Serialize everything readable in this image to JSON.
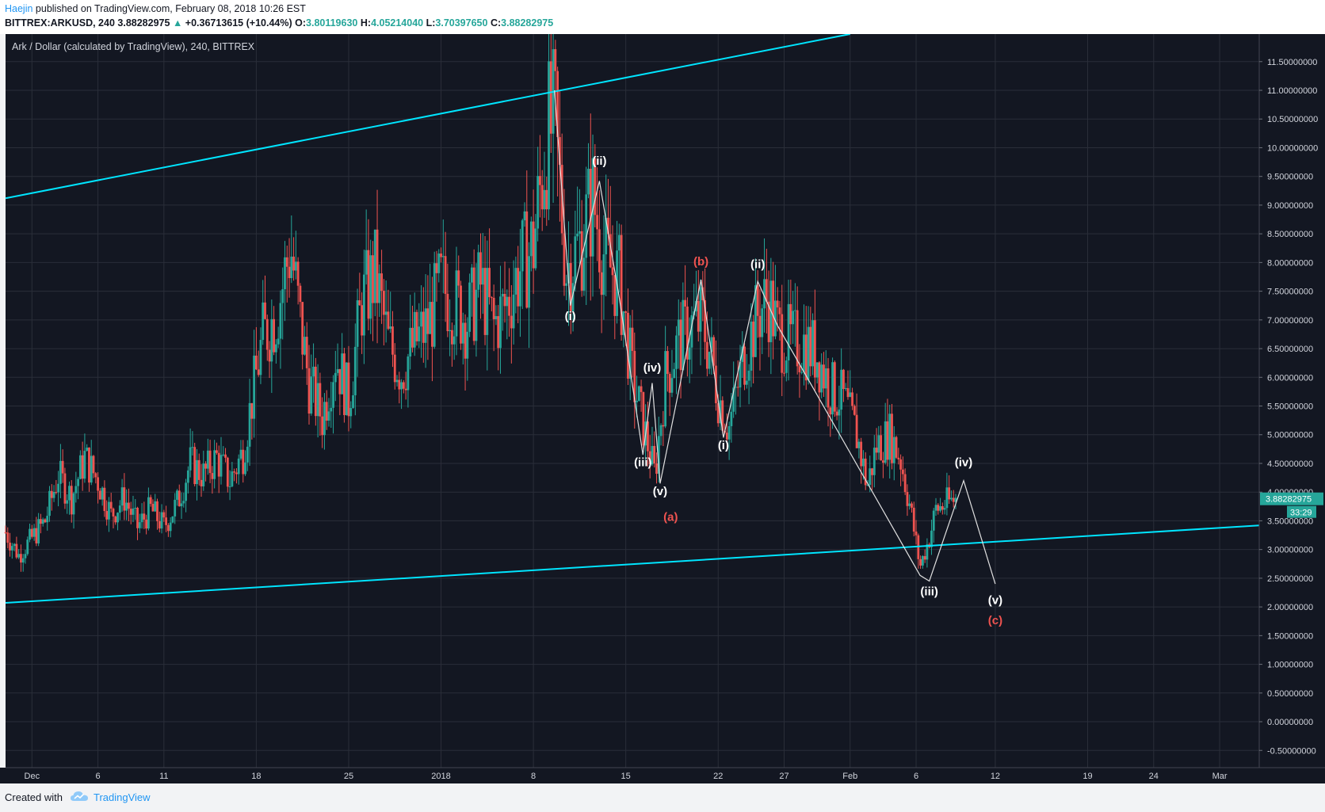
{
  "header": {
    "author": "Haejin",
    "published_text": "published on TradingView.com, February 08, 2018 10:26 EST",
    "symbol": "BITTREX:ARKUSD, 240",
    "last_price": "3.88282975",
    "change_arrow": "▲",
    "change": "+0.36713615 (+10.44%)",
    "open_label": "O:",
    "open": "3.80119630",
    "high_label": "H:",
    "high": "4.05214040",
    "low_label": "L:",
    "low": "3.70397650",
    "close_label": "C:",
    "close": "3.88282975"
  },
  "footer": {
    "created_with": "Created with",
    "brand": "TradingView",
    "brand_icon": "tradingview-cloud-icon"
  },
  "colors": {
    "background": "#131722",
    "grid": "#2a2e39",
    "axis_text": "#d1d4dc",
    "up_candle": "#26a69a",
    "down_candle": "#ef5350",
    "trendline": "#00e5ff",
    "wave_line": "#e0e0e0",
    "wave_label": "#ffffff",
    "abc_label": "#ef5350",
    "price_tag": "#26a69a"
  },
  "chart_data": {
    "type": "candlestick",
    "title": "Ark / Dollar (calculated by TradingView), 240, BITTREX",
    "interval": "240",
    "x_ticks": [
      "Dec",
      "6",
      "11",
      "18",
      "25",
      "2018",
      "8",
      "15",
      "22",
      "27",
      "Feb",
      "6",
      "12",
      "19",
      "24",
      "Mar"
    ],
    "x_tick_days": [
      1,
      6,
      11,
      18,
      25,
      32,
      39,
      46,
      53,
      58,
      63,
      68,
      74,
      81,
      86,
      91
    ],
    "x_range_days": [
      -1,
      94
    ],
    "y_range": [
      -0.8,
      11.98
    ],
    "y_ticks": [
      "-0.50000000",
      "0.00000000",
      "0.50000000",
      "1.00000000",
      "1.50000000",
      "2.00000000",
      "2.50000000",
      "3.00000000",
      "3.50000000",
      "4.00000000",
      "4.50000000",
      "5.00000000",
      "5.50000000",
      "6.00000000",
      "6.50000000",
      "7.00000000",
      "7.50000000",
      "8.00000000",
      "8.50000000",
      "9.00000000",
      "9.50000000",
      "10.00000000",
      "10.50000000",
      "11.00000000",
      "11.50000000"
    ],
    "y_tick_values": [
      -0.5,
      0,
      0.5,
      1,
      1.5,
      2,
      2.5,
      3,
      3.5,
      4,
      4.5,
      5,
      5.5,
      6,
      6.5,
      7,
      7.5,
      8,
      8.5,
      9,
      9.5,
      10,
      10.5,
      11,
      11.5
    ],
    "grid": true,
    "last_price_label": "3.88282975",
    "last_price_value": 3.883,
    "countdown_label": "33:29",
    "price_path": [
      [
        -1,
        3.3
      ],
      [
        0,
        2.9
      ],
      [
        1,
        3.2
      ],
      [
        2,
        3.5
      ],
      [
        3,
        4.3
      ],
      [
        4,
        3.9
      ],
      [
        5,
        4.6
      ],
      [
        6,
        4.2
      ],
      [
        7,
        3.6
      ],
      [
        8,
        3.9
      ],
      [
        9,
        3.4
      ],
      [
        10,
        3.7
      ],
      [
        11,
        3.4
      ],
      [
        12,
        3.8
      ],
      [
        13,
        4.5
      ],
      [
        14,
        4.3
      ],
      [
        15,
        4.6
      ],
      [
        16,
        4.2
      ],
      [
        17,
        4.7
      ],
      [
        17.8,
        5.8
      ],
      [
        18.5,
        6.7
      ],
      [
        19.5,
        7.1
      ],
      [
        20,
        7.6
      ],
      [
        20.6,
        8.3
      ],
      [
        21.3,
        7.0
      ],
      [
        22,
        5.9
      ],
      [
        23,
        5.3
      ],
      [
        24,
        6.4
      ],
      [
        25,
        5.6
      ],
      [
        26,
        7.3
      ],
      [
        27,
        7.8
      ],
      [
        28,
        6.6
      ],
      [
        29,
        6.1
      ],
      [
        30,
        6.6
      ],
      [
        31,
        6.9
      ],
      [
        32,
        7.6
      ],
      [
        33,
        7.3
      ],
      [
        34,
        7.0
      ],
      [
        35,
        7.6
      ],
      [
        36,
        6.9
      ],
      [
        37,
        7.3
      ],
      [
        38,
        7.9
      ],
      [
        39,
        8.3
      ],
      [
        40,
        10.2
      ],
      [
        40.6,
        10.4
      ],
      [
        41.5,
        7.9
      ],
      [
        42.5,
        8.3
      ],
      [
        43.5,
        9.1
      ],
      [
        44.5,
        8.0
      ],
      [
        45.5,
        7.7
      ],
      [
        46.5,
        6.0
      ],
      [
        47.5,
        5.0
      ],
      [
        48.2,
        4.3
      ],
      [
        49,
        6.0
      ],
      [
        50,
        6.6
      ],
      [
        51,
        6.9
      ],
      [
        51.8,
        7.0
      ],
      [
        52.5,
        6.3
      ],
      [
        53,
        5.7
      ],
      [
        53.8,
        5.1
      ],
      [
        55,
        6.4
      ],
      [
        56,
        7.1
      ],
      [
        56.8,
        7.4
      ],
      [
        57.5,
        6.8
      ],
      [
        58.5,
        6.6
      ],
      [
        59.5,
        6.6
      ],
      [
        60.5,
        6.4
      ],
      [
        61.5,
        5.8
      ],
      [
        62.5,
        5.6
      ],
      [
        63.5,
        5.0
      ],
      [
        64.3,
        4.1
      ],
      [
        65,
        4.8
      ],
      [
        66,
        5.0
      ],
      [
        66.8,
        4.6
      ],
      [
        67.5,
        3.8
      ],
      [
        68.3,
        2.7
      ],
      [
        69,
        3.2
      ],
      [
        69.5,
        3.7
      ],
      [
        70.3,
        3.8
      ],
      [
        71,
        3.883
      ]
    ],
    "trendlines": [
      {
        "name": "upper channel",
        "points": [
          [
            -1,
            9.12
          ],
          [
            63.0,
            11.98
          ]
        ]
      },
      {
        "name": "lower channel",
        "points": [
          [
            -1,
            2.07
          ],
          [
            94,
            3.42
          ]
        ]
      }
    ],
    "wave_path": [
      [
        40.6,
        11.0
      ],
      [
        41.8,
        7.25
      ],
      [
        44.0,
        9.42
      ],
      [
        45.5,
        7.4
      ],
      [
        47.3,
        4.65
      ],
      [
        48.0,
        5.9
      ],
      [
        48.6,
        4.15
      ],
      [
        51.7,
        7.7
      ],
      [
        53.4,
        4.95
      ],
      [
        56.0,
        7.67
      ],
      [
        57.5,
        6.9
      ],
      [
        68.3,
        2.55
      ],
      [
        69.0,
        2.45
      ],
      [
        71.6,
        4.2
      ],
      [
        74.0,
        2.4
      ]
    ],
    "wave_labels": [
      {
        "text": "(i)",
        "x": 41.8,
        "y": 7.0
      },
      {
        "text": "(ii)",
        "x": 44.0,
        "y": 9.7
      },
      {
        "text": "(iii)",
        "x": 47.3,
        "y": 4.45
      },
      {
        "text": "(iv)",
        "x": 48.0,
        "y": 6.1
      },
      {
        "text": "(v)",
        "x": 48.6,
        "y": 3.95
      },
      {
        "text": "(i)",
        "x": 53.4,
        "y": 4.75
      },
      {
        "text": "(ii)",
        "x": 56.0,
        "y": 7.9
      },
      {
        "text": "(iii)",
        "x": 69.0,
        "y": 2.2
      },
      {
        "text": "(iv)",
        "x": 71.6,
        "y": 4.45
      },
      {
        "text": "(v)",
        "x": 74.0,
        "y": 2.05
      }
    ],
    "abc_labels": [
      {
        "text": "(a)",
        "x": 49.4,
        "y": 3.5
      },
      {
        "text": "(b)",
        "x": 51.7,
        "y": 7.95
      },
      {
        "text": "(c)",
        "x": 74.0,
        "y": 1.7
      }
    ]
  }
}
